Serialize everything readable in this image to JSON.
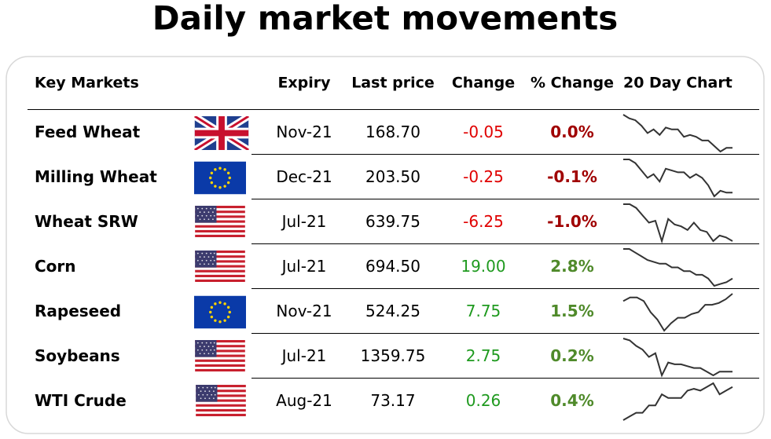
{
  "title": "Daily market movements",
  "table": {
    "header": [
      "Key Markets",
      "Expiry",
      "Last price",
      "Change",
      "% Change",
      "20 Day Chart"
    ],
    "rows": [
      {
        "market": "Feed Wheat",
        "expiry": "Nov-21",
        "last_price": "168.70",
        "change": "-0.05",
        "pct_change": "0.0%",
        "change_color": "#e00000",
        "pct_color": "#a00000",
        "chart": [
          10,
          9,
          8.5,
          7,
          5,
          6,
          4.5,
          6.5,
          6,
          6,
          4,
          4.5,
          4,
          3,
          3,
          1.5,
          0,
          1,
          1
        ]
      },
      {
        "market": "Milling Wheat",
        "expiry": "Dec-21",
        "last_price": "203.50",
        "change": "-0.25",
        "pct_change": "-0.1%",
        "change_color": "#e00000",
        "pct_color": "#a00000",
        "chart": [
          10,
          10,
          9,
          7,
          5,
          6,
          4,
          7.5,
          7,
          6.5,
          6.5,
          5,
          6,
          5,
          3,
          0,
          1.5,
          1,
          1
        ]
      },
      {
        "market": "Wheat SRW",
        "expiry": "Jul-21",
        "last_price": "639.75",
        "change": "-6.25",
        "pct_change": "-1.0%",
        "change_color": "#e00000",
        "pct_color": "#a00000",
        "chart": [
          10,
          10,
          9,
          7,
          5,
          5.5,
          0,
          6,
          4.5,
          4,
          3,
          5,
          3,
          2.5,
          0,
          1.5,
          1,
          0
        ]
      },
      {
        "market": "Corn",
        "expiry": "Jul-21",
        "last_price": "694.50",
        "change": "19.00",
        "pct_change": "2.8%",
        "change_color": "#1f9a1f",
        "pct_color": "#4f8a2a",
        "chart": [
          10,
          10,
          9,
          8,
          7,
          6.5,
          6,
          6,
          5,
          5,
          4,
          4,
          3,
          3,
          2,
          0,
          0.5,
          1,
          2
        ]
      },
      {
        "market": "Rapeseed",
        "expiry": "Nov-21",
        "last_price": "524.25",
        "change": "7.75",
        "pct_change": "1.5%",
        "change_color": "#1f9a1f",
        "pct_color": "#4f8a2a",
        "chart": [
          8,
          9,
          9,
          8,
          5,
          3,
          0,
          2,
          3.5,
          3.5,
          4.5,
          5,
          7,
          7,
          7.5,
          8.5,
          10
        ]
      },
      {
        "market": "Soybeans",
        "expiry": "Jul-21",
        "last_price": "1359.75",
        "change": "2.75",
        "pct_change": "0.2%",
        "change_color": "#1f9a1f",
        "pct_color": "#4f8a2a",
        "chart": [
          10,
          9.5,
          8,
          7,
          5,
          6,
          0,
          3.5,
          3,
          3,
          2.5,
          2,
          2,
          1,
          0,
          1,
          1,
          1
        ]
      },
      {
        "market": "WTI Crude",
        "expiry": "Aug-21",
        "last_price": "73.17",
        "change": "0.26",
        "pct_change": "0.4%",
        "change_color": "#1f9a1f",
        "pct_color": "#4f8a2a",
        "chart": [
          0,
          1,
          2,
          2,
          4,
          4,
          7,
          6,
          6,
          6,
          8,
          8.5,
          8,
          9,
          10,
          7,
          8,
          9
        ]
      }
    ]
  }
}
